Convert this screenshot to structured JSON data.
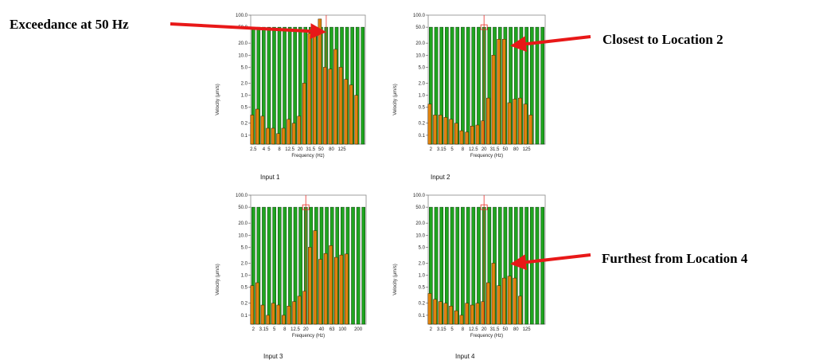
{
  "annotations": [
    {
      "id": "ann1",
      "text": "Exceedance at 50 Hz"
    },
    {
      "id": "ann2",
      "text": "Closest to Location 2"
    },
    {
      "id": "ann3",
      "text": "Furthest from Location 4"
    }
  ],
  "colors": {
    "limit": "#1fa51f",
    "limit_edge": "#0b3a0b",
    "measured": "#e0820d",
    "measured_edge": "#3a2200",
    "marker": "#e8312c",
    "arrow": "#e81818"
  },
  "chart_data": [
    {
      "type": "bar",
      "caption": "Input 1",
      "xlabel": "Frequency (Hz)",
      "ylabel": "Velocity (μm/s)",
      "yscale": "log",
      "ylim": [
        0.06,
        100
      ],
      "yticks": [
        "0.1",
        "0.2",
        "0.5",
        "1.0",
        "2.0",
        "5.0",
        "10.0",
        "20.0",
        "50.0",
        "100.0"
      ],
      "xticks": [
        {
          "label": "2.5",
          "i": 0
        },
        {
          "label": "4",
          "i": 2
        },
        {
          "label": "5",
          "i": 3
        },
        {
          "label": "8",
          "i": 5
        },
        {
          "label": "12.5",
          "i": 7
        },
        {
          "label": "20",
          "i": 9
        },
        {
          "label": "31.5",
          "i": 11
        },
        {
          "label": "50",
          "i": 13
        },
        {
          "label": "80",
          "i": 15
        },
        {
          "label": "125",
          "i": 17
        }
      ],
      "marker_index": 14,
      "marker_box": false,
      "series": [
        {
          "name": "limit",
          "values": [
            50,
            50,
            50,
            50,
            50,
            50,
            50,
            50,
            50,
            50,
            50,
            50,
            50,
            50,
            50,
            50,
            50,
            50,
            50,
            50,
            50,
            50
          ]
        },
        {
          "name": "measured",
          "values": [
            0.32,
            0.45,
            0.3,
            0.15,
            0.15,
            0.11,
            0.15,
            0.25,
            0.2,
            0.3,
            2.0,
            35,
            40,
            80,
            5.0,
            4.5,
            14,
            5.0,
            2.5,
            1.8,
            1.0,
            0
          ]
        }
      ]
    },
    {
      "type": "bar",
      "caption": "Input 2",
      "xlabel": "Frequency (Hz)",
      "ylabel": "Velocity (μm/s)",
      "yscale": "log",
      "ylim": [
        0.06,
        100
      ],
      "yticks": [
        "0.1",
        "0.2",
        "0.5",
        "1.0",
        "2.0",
        "5.0",
        "10.0",
        "20.0",
        "50.0",
        "100.0"
      ],
      "xticks": [
        {
          "label": "2",
          "i": 0
        },
        {
          "label": "3.15",
          "i": 2
        },
        {
          "label": "5",
          "i": 4
        },
        {
          "label": "8",
          "i": 6
        },
        {
          "label": "12.5",
          "i": 8
        },
        {
          "label": "20",
          "i": 10
        },
        {
          "label": "31.5",
          "i": 12
        },
        {
          "label": "50",
          "i": 14
        },
        {
          "label": "80",
          "i": 16
        },
        {
          "label": "125",
          "i": 18
        }
      ],
      "marker_index": 10,
      "marker_box": true,
      "series": [
        {
          "name": "limit",
          "values": [
            50,
            50,
            50,
            50,
            50,
            50,
            50,
            50,
            50,
            50,
            50,
            50,
            50,
            50,
            50,
            50,
            50,
            50,
            50,
            50,
            50,
            50
          ]
        },
        {
          "name": "measured",
          "values": [
            0.6,
            0.32,
            0.32,
            0.28,
            0.25,
            0.2,
            0.13,
            0.12,
            0.17,
            0.18,
            0.23,
            0.85,
            10,
            25,
            25,
            0.65,
            0.8,
            0.85,
            0.6,
            0.32,
            0,
            0
          ]
        }
      ]
    },
    {
      "type": "bar",
      "caption": "Input 3",
      "xlabel": "Frequency (Hz)",
      "ylabel": "Velocity (μm/s)",
      "yscale": "log",
      "ylim": [
        0.06,
        100
      ],
      "yticks": [
        "0.1",
        "0.2",
        "0.5",
        "1.0",
        "2.0",
        "5.0",
        "10.0",
        "20.0",
        "50.0",
        "100.0"
      ],
      "xticks": [
        {
          "label": "2",
          "i": 0
        },
        {
          "label": "3.15",
          "i": 2
        },
        {
          "label": "5",
          "i": 4
        },
        {
          "label": "8",
          "i": 6
        },
        {
          "label": "12.5",
          "i": 8
        },
        {
          "label": "20",
          "i": 10
        },
        {
          "label": "40",
          "i": 13
        },
        {
          "label": "63",
          "i": 15
        },
        {
          "label": "100",
          "i": 17
        },
        {
          "label": "200",
          "i": 20
        }
      ],
      "marker_index": 10,
      "marker_box": true,
      "series": [
        {
          "name": "limit",
          "values": [
            50,
            50,
            50,
            50,
            50,
            50,
            50,
            50,
            50,
            50,
            50,
            50,
            50,
            50,
            50,
            50,
            50,
            50,
            50,
            50,
            50,
            50
          ]
        },
        {
          "name": "measured",
          "values": [
            0.55,
            0.65,
            0.18,
            0.1,
            0.2,
            0.18,
            0.1,
            0.17,
            0.22,
            0.3,
            0.4,
            5.0,
            13,
            2.5,
            3.5,
            5.5,
            2.8,
            3.2,
            3.4,
            0,
            0,
            0
          ]
        }
      ]
    },
    {
      "type": "bar",
      "caption": "Input 4",
      "xlabel": "Frequency (Hz)",
      "ylabel": "Velocity (μm/s)",
      "yscale": "log",
      "ylim": [
        0.06,
        100
      ],
      "yticks": [
        "0.1",
        "0.2",
        "0.5",
        "1.0",
        "2.0",
        "5.0",
        "10.0",
        "20.0",
        "50.0",
        "100.0"
      ],
      "xticks": [
        {
          "label": "2",
          "i": 0
        },
        {
          "label": "3.15",
          "i": 2
        },
        {
          "label": "5",
          "i": 4
        },
        {
          "label": "8",
          "i": 6
        },
        {
          "label": "12.5",
          "i": 8
        },
        {
          "label": "20",
          "i": 10
        },
        {
          "label": "31.5",
          "i": 12
        },
        {
          "label": "50",
          "i": 14
        },
        {
          "label": "80",
          "i": 16
        },
        {
          "label": "125",
          "i": 18
        }
      ],
      "marker_index": 10,
      "marker_box": true,
      "series": [
        {
          "name": "limit",
          "values": [
            50,
            50,
            50,
            50,
            50,
            50,
            50,
            50,
            50,
            50,
            50,
            50,
            50,
            50,
            50,
            50,
            50,
            50,
            50,
            50,
            50,
            50
          ]
        },
        {
          "name": "measured",
          "values": [
            0.35,
            0.25,
            0.22,
            0.2,
            0.17,
            0.13,
            0.1,
            0.2,
            0.18,
            0.2,
            0.22,
            0.65,
            2.0,
            0.55,
            0.85,
            0.95,
            0.85,
            0.3,
            0,
            0,
            0,
            0
          ]
        }
      ]
    }
  ]
}
